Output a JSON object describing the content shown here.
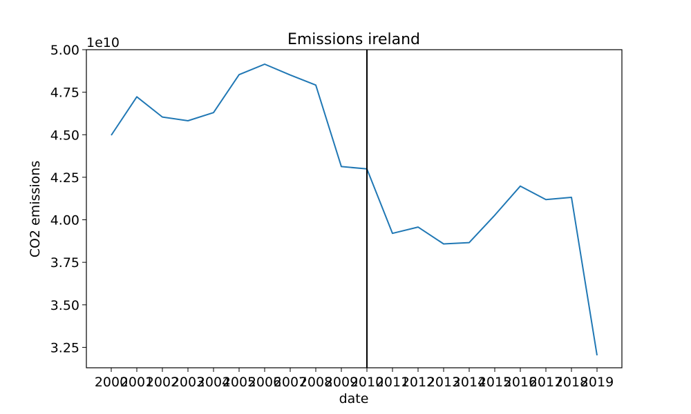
{
  "chart_data": {
    "type": "line",
    "title": "Emissions ireland",
    "xlabel": "date",
    "ylabel": "CO2 emissions",
    "y_offset_label": "1e10",
    "y_scale": 10000000000.0,
    "x": [
      "2000",
      "2001",
      "2002",
      "2003",
      "2004",
      "2005",
      "2006",
      "2007",
      "2008",
      "2009",
      "2010",
      "2011",
      "2012",
      "2013",
      "2014",
      "2015",
      "2016",
      "2017",
      "2018",
      "2019"
    ],
    "series": [
      {
        "values": [
          44970000000,
          47230000000,
          46040000000,
          45820000000,
          46300000000,
          48530000000,
          49150000000,
          48510000000,
          47920000000,
          43130000000,
          42990000000,
          39200000000,
          39570000000,
          38580000000,
          38660000000,
          40270000000,
          41980000000,
          41190000000,
          41320000000,
          32030000000
        ]
      }
    ],
    "ylim": [
      31300000000.0,
      50000000000.0
    ],
    "yticks": [
      32500000000.0,
      35000000000.0,
      37500000000.0,
      40000000000.0,
      42500000000.0,
      45000000000.0,
      47500000000.0,
      50000000000.0
    ],
    "ytick_labels": [
      "3.25",
      "3.50",
      "3.75",
      "4.00",
      "4.25",
      "4.50",
      "4.75",
      "5.00"
    ],
    "vline_at": "2010",
    "line_color": "#1f77b4",
    "vline_color": "#000000",
    "grid": false,
    "legend": "none"
  }
}
